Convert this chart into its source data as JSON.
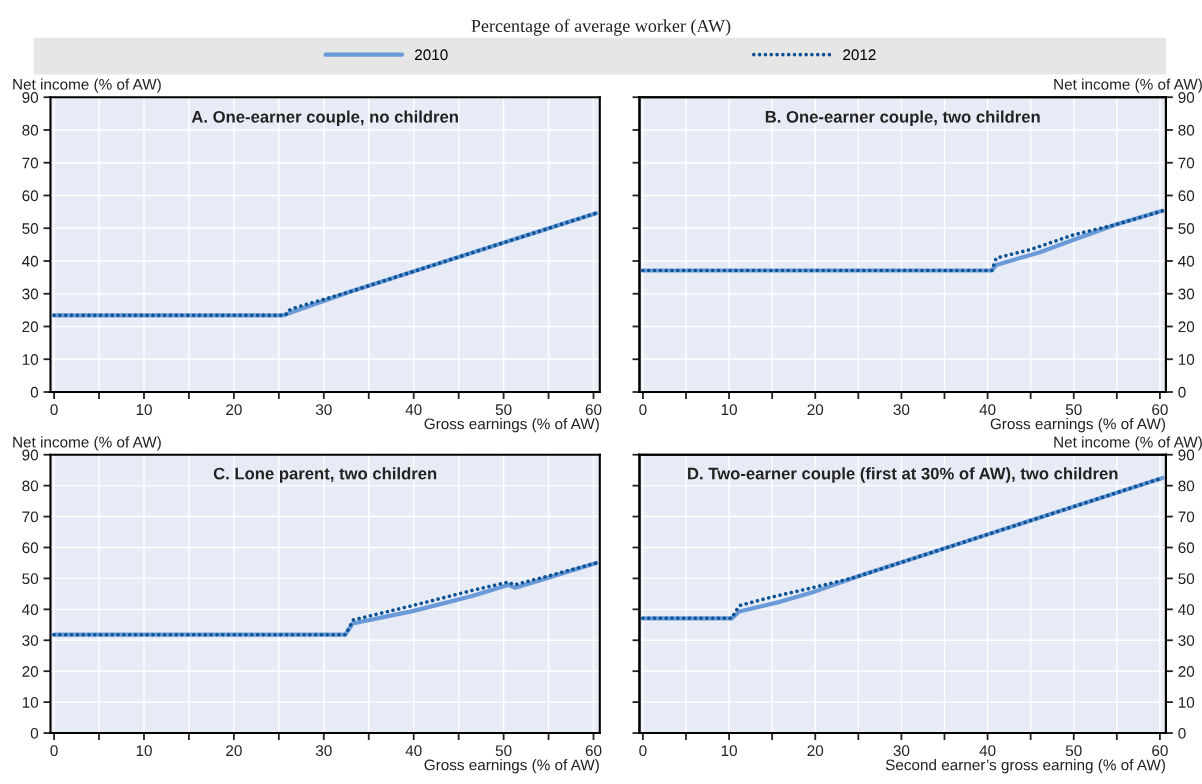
{
  "chart_data": [
    {
      "type": "line",
      "title": "A. One-earner couple, no children",
      "legend_title": "Percentage of average worker (AW)",
      "legend": "top",
      "xlabel": "Gross earnings (% of AW)",
      "ylabel": "Net income (% of AW)",
      "xlim": [
        -0.4,
        60.7
      ],
      "ylim": [
        0,
        90
      ],
      "xticks": [
        0,
        {
          "value": 5,
          "label": null
        },
        10,
        {
          "value": 15,
          "label": null
        },
        20,
        {
          "value": 25,
          "label": null
        },
        30,
        {
          "value": 35,
          "label": null
        },
        40,
        {
          "value": 45,
          "label": null
        },
        50,
        {
          "value": 55,
          "label": null
        },
        60
      ],
      "yticks": [
        0,
        10,
        20,
        30,
        40,
        50,
        60,
        70,
        80,
        90
      ],
      "grid": true,
      "series": [
        {
          "name": "2010",
          "color": "#6a9bd8",
          "line_style": "solid",
          "x": [
            0,
            25.5,
            26.5,
            33,
            60.3
          ],
          "values": [
            23.4,
            23.4,
            24.4,
            30.7,
            54.6
          ]
        },
        {
          "name": "2012",
          "color": "#0b5394",
          "line_style": "dotted",
          "x": [
            0,
            25.7,
            26.3,
            33,
            60.3
          ],
          "values": [
            23.4,
            23.4,
            25.3,
            30.7,
            54.6
          ]
        }
      ]
    },
    {
      "type": "line",
      "title": "B. One-earner couple, two children",
      "xlabel": "Gross earnings (% of AW)",
      "y2label": "Net income (% of AW)",
      "xlim": [
        -0.4,
        60.7
      ],
      "y2lim": [
        0,
        90
      ],
      "xticks": [
        0,
        {
          "value": 5,
          "label": null
        },
        10,
        {
          "value": 15,
          "label": null
        },
        20,
        {
          "value": 25,
          "label": null
        },
        30,
        {
          "value": 35,
          "label": null
        },
        40,
        {
          "value": 45,
          "label": null
        },
        50,
        {
          "value": 55,
          "label": null
        },
        60
      ],
      "y2ticks": [
        0,
        10,
        20,
        30,
        40,
        50,
        60,
        70,
        80,
        90
      ],
      "grid": true,
      "series": [
        {
          "name": "2010",
          "color": "#6a9bd8",
          "line_style": "solid",
          "axis": "y2",
          "x": [
            0,
            40.5,
            41,
            46,
            50,
            55,
            60.3
          ],
          "values": [
            37.1,
            37.1,
            38.8,
            42.6,
            46.5,
            51.2,
            55.3
          ]
        },
        {
          "name": "2012",
          "color": "#0b5394",
          "line_style": "dotted",
          "axis": "y2",
          "x": [
            0,
            40.5,
            41,
            45,
            50,
            55,
            60.3
          ],
          "values": [
            37.1,
            37.1,
            40.9,
            43.5,
            48,
            51.2,
            55.3
          ]
        }
      ]
    },
    {
      "type": "line",
      "title": "C. Lone parent, two children",
      "xlabel": "Gross earnings (% of AW)",
      "ylabel": "Net income (% of AW)",
      "xlim": [
        -0.4,
        60.7
      ],
      "ylim": [
        0,
        90
      ],
      "xticks": [
        0,
        {
          "value": 5,
          "label": null
        },
        10,
        {
          "value": 15,
          "label": null
        },
        20,
        {
          "value": 25,
          "label": null
        },
        30,
        {
          "value": 35,
          "label": null
        },
        40,
        {
          "value": 45,
          "label": null
        },
        50,
        {
          "value": 55,
          "label": null
        },
        60
      ],
      "yticks": [
        0,
        10,
        20,
        30,
        40,
        50,
        60,
        70,
        80,
        90
      ],
      "grid": true,
      "series": [
        {
          "name": "2010",
          "color": "#6a9bd8",
          "line_style": "solid",
          "x": [
            0,
            32.4,
            33.2,
            40,
            46.5,
            50.5,
            51.3,
            55,
            60.3
          ],
          "values": [
            31.8,
            31.8,
            35.4,
            39.5,
            44.3,
            47.9,
            47.0,
            50.2,
            55.0
          ]
        },
        {
          "name": "2012",
          "color": "#0b5394",
          "line_style": "dotted",
          "x": [
            0,
            32.4,
            32.8,
            33.3,
            40,
            46.5,
            50.5,
            51.2,
            55,
            60.3
          ],
          "values": [
            31.8,
            31.8,
            34.0,
            36.6,
            41.3,
            46.1,
            48.8,
            47.9,
            50.8,
            55.0
          ]
        }
      ]
    },
    {
      "type": "line",
      "title": "D. Two-earner couple (first at 30% of AW), two children",
      "xlabel": "Second earner’s gross earning (% of AW)",
      "y2label": "Net income (% of AW)",
      "xlim": [
        -0.4,
        60.7
      ],
      "y2lim": [
        0,
        90
      ],
      "xticks": [
        0,
        {
          "value": 5,
          "label": null
        },
        10,
        {
          "value": 15,
          "label": null
        },
        20,
        {
          "value": 25,
          "label": null
        },
        30,
        {
          "value": 35,
          "label": null
        },
        40,
        {
          "value": 45,
          "label": null
        },
        50,
        {
          "value": 55,
          "label": null
        },
        60
      ],
      "y2ticks": [
        0,
        10,
        20,
        30,
        40,
        50,
        60,
        70,
        80,
        90
      ],
      "grid": true,
      "series": [
        {
          "name": "2010",
          "color": "#6a9bd8",
          "line_style": "solid",
          "axis": "y2",
          "x": [
            0,
            10.3,
            11.2,
            16,
            20,
            25,
            60.3
          ],
          "values": [
            37.1,
            37.1,
            39.3,
            42.5,
            45.8,
            50.7,
            82.5
          ]
        },
        {
          "name": "2012",
          "color": "#0b5394",
          "line_style": "dotted",
          "axis": "y2",
          "x": [
            0,
            10.3,
            10.8,
            11.3,
            15,
            20,
            24,
            25,
            60.3
          ],
          "values": [
            37.1,
            37.1,
            39.5,
            41.3,
            44.0,
            47.2,
            49.9,
            50.7,
            82.5
          ]
        }
      ]
    }
  ]
}
